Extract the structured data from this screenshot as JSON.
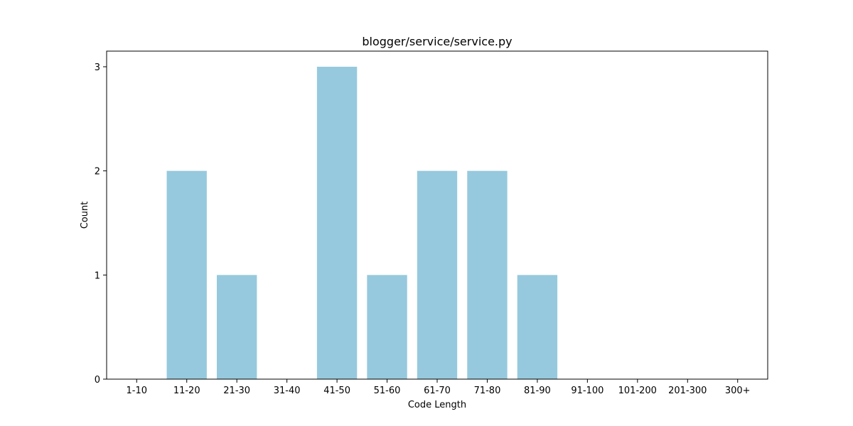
{
  "chart_data": {
    "type": "bar",
    "title": "blogger/service/service.py",
    "xlabel": "Code Length",
    "ylabel": "Count",
    "categories": [
      "1-10",
      "11-20",
      "21-30",
      "31-40",
      "41-50",
      "51-60",
      "61-70",
      "71-80",
      "81-90",
      "91-100",
      "101-200",
      "201-300",
      "300+"
    ],
    "values": [
      0,
      2,
      1,
      0,
      3,
      1,
      2,
      2,
      1,
      0,
      0,
      0,
      0
    ],
    "yticks": [
      "0",
      "1",
      "2",
      "3"
    ],
    "ylim": [
      0,
      3.15
    ],
    "bar_color": "#96c9dd",
    "grid": false,
    "legend": "none"
  }
}
